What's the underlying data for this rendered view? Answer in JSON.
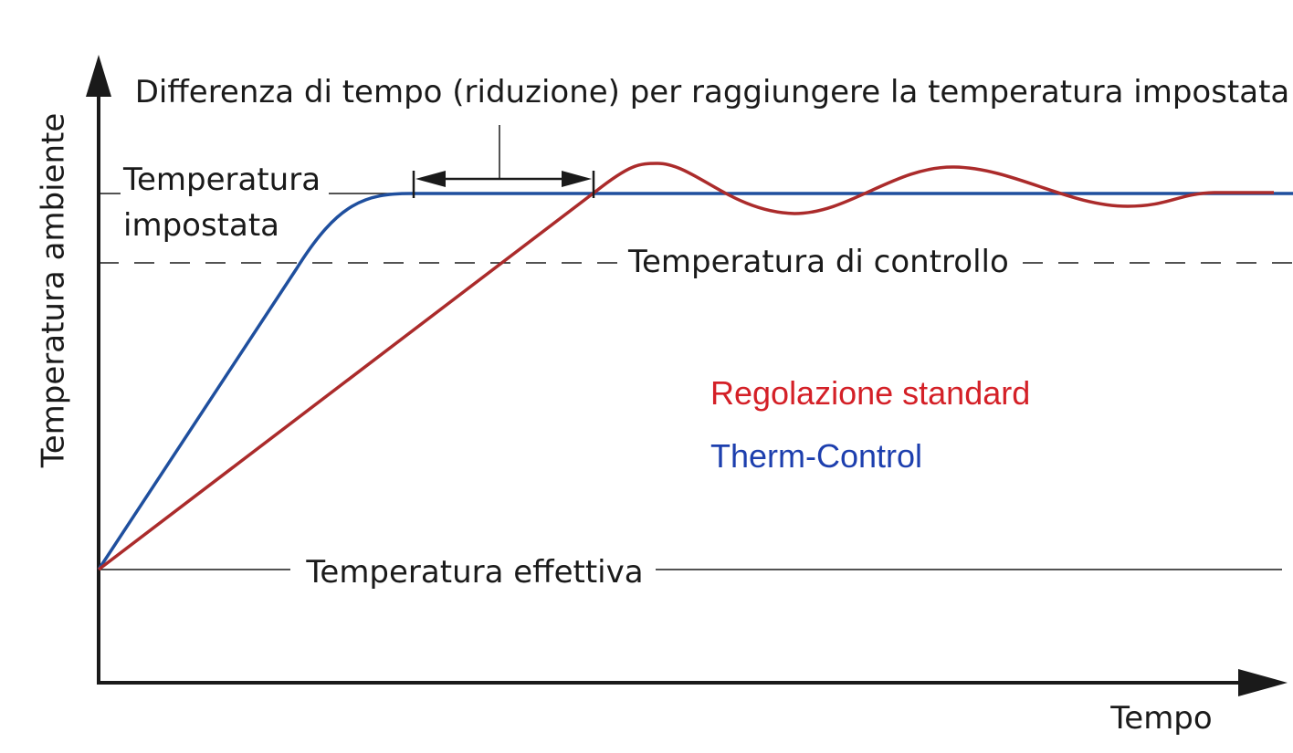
{
  "texts": {
    "y_axis_label": "Temperatura ambiente",
    "x_axis_label": "Tempo",
    "time_difference_label": "Differenza di tempo (riduzione) per raggiungere la temperatura impostata",
    "set_temperature_line1": "Temperatura",
    "set_temperature_line2": "impostata",
    "control_temperature_label": "Temperatura di controllo",
    "actual_temperature_label": "Temperatura effettiva"
  },
  "legend": [
    {
      "label": "Regolazione standard",
      "color": "#d42027"
    },
    {
      "label": "Therm-Control",
      "color": "#1d3fae"
    }
  ],
  "colors": {
    "axis": "#1a1a1a",
    "standard_curve": "#ab2b2b",
    "therm_control_curve": "#1f4f9e",
    "reference_lines": "#1a1a1a"
  }
}
